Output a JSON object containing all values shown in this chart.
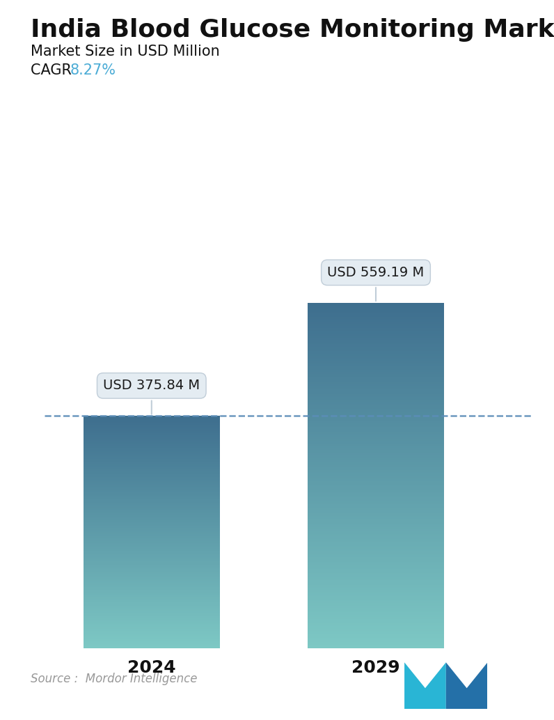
{
  "title": "India Blood Glucose Monitoring Market",
  "subtitle": "Market Size in USD Million",
  "cagr_label": "CAGR ",
  "cagr_value": "8.27%",
  "cagr_color": "#4BACD6",
  "categories": [
    "2024",
    "2029"
  ],
  "values": [
    375.84,
    559.19
  ],
  "bar_labels": [
    "USD 375.84 M",
    "USD 559.19 M"
  ],
  "bar_top_color": "#3E6E8E",
  "bar_bottom_color": "#7DC8C4",
  "dashed_line_y": 375.84,
  "dashed_line_color": "#5B8DB8",
  "source_text": "Source :  Mordor Intelligence",
  "source_color": "#999999",
  "title_fontsize": 26,
  "subtitle_fontsize": 15,
  "cagr_fontsize": 15,
  "tick_fontsize": 18,
  "label_fontsize": 14,
  "ylim": [
    0,
    700
  ],
  "background_color": "#ffffff"
}
